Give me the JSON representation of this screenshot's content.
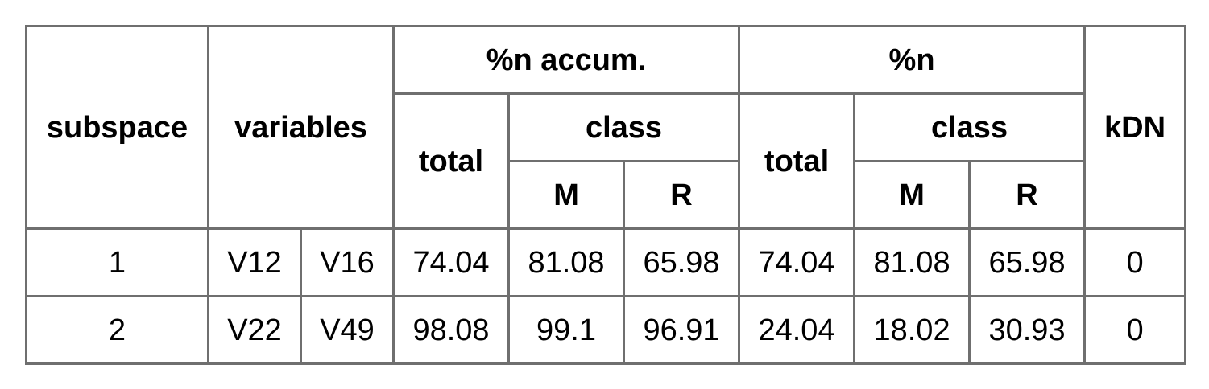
{
  "table": {
    "headers": {
      "subspace": "subspace",
      "variables": "variables",
      "accum_group": "%n accum.",
      "n_group": "%n",
      "kdn": "kDN",
      "accum_total": "total",
      "accum_class": "class",
      "n_total": "total",
      "n_class": "class",
      "accum_m": "M",
      "accum_r": "R",
      "n_m": "M",
      "n_r": "R"
    },
    "rows": [
      {
        "subspace": "1",
        "var_a": "V12",
        "var_b": "V16",
        "accum_total": "74.04",
        "accum_m": "81.08",
        "accum_r": "65.98",
        "n_total": "74.04",
        "n_m": "81.08",
        "n_r": "65.98",
        "kdn": "0"
      },
      {
        "subspace": "2",
        "var_a": "V22",
        "var_b": "V49",
        "accum_total": "98.08",
        "accum_m": "99.1",
        "accum_r": "96.91",
        "n_total": "24.04",
        "n_m": "18.02",
        "n_r": "30.93",
        "kdn": "0"
      }
    ]
  }
}
